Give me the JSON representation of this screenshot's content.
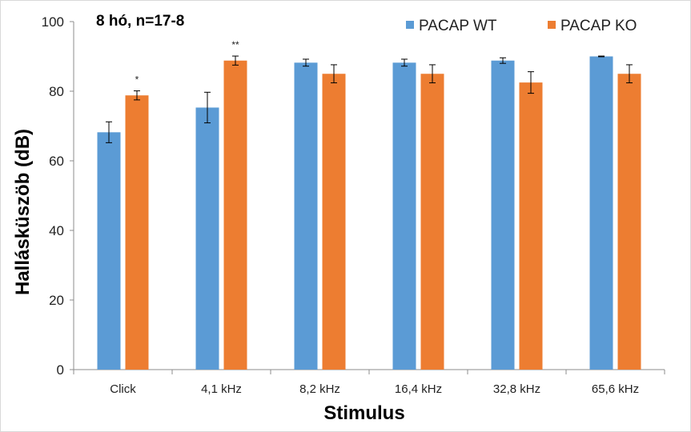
{
  "chart_data": {
    "type": "bar",
    "title": "8 hó, n=17-8",
    "xlabel": "Stimulus",
    "ylabel": "Hallásküszöb (dB)",
    "ylim": [
      0,
      100
    ],
    "yticks": [
      0,
      20,
      40,
      60,
      80,
      100
    ],
    "grid": false,
    "legend_position": "top-right",
    "categories": [
      "Click",
      "4,1 kHz",
      "8,2 kHz",
      "16,4 kHz",
      "32,8 kHz",
      "65,6 kHz"
    ],
    "series": [
      {
        "name": "PACAP WT",
        "color": "#5B9BD5",
        "values": [
          68.2,
          75.3,
          88.2,
          88.2,
          88.8,
          90.0
        ],
        "errors": [
          3.0,
          4.4,
          1.0,
          1.0,
          0.8,
          0.1
        ]
      },
      {
        "name": "PACAP KO",
        "color": "#ED7D31",
        "values": [
          78.8,
          88.8,
          85.0,
          85.0,
          82.5,
          85.0
        ],
        "errors": [
          1.3,
          1.3,
          2.6,
          2.6,
          3.1,
          2.6
        ]
      }
    ],
    "annotations": [
      {
        "category": "Click",
        "series": "PACAP KO",
        "text": "*"
      },
      {
        "category": "4,1 kHz",
        "series": "PACAP KO",
        "text": "**"
      }
    ]
  }
}
